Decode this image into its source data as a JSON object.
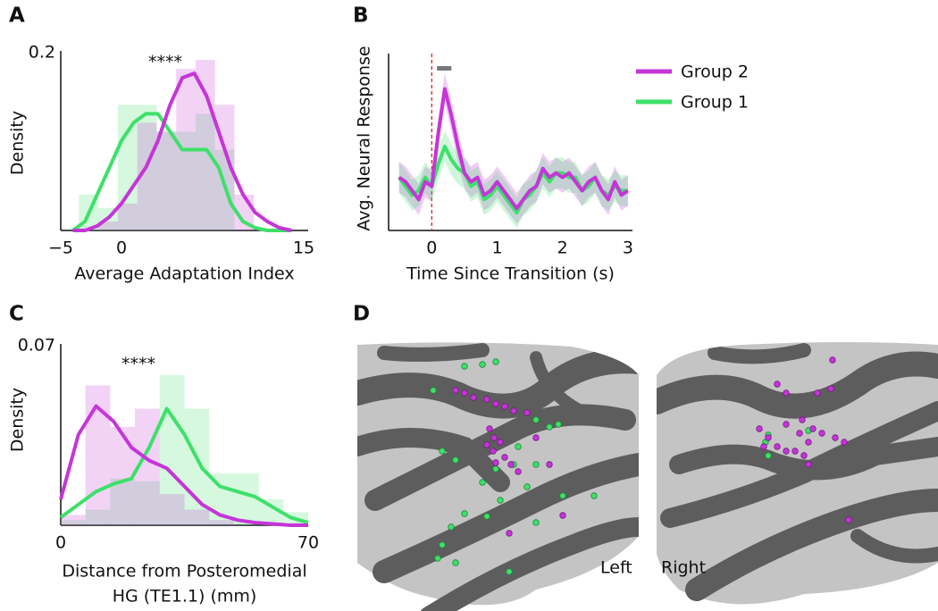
{
  "panel_labels": [
    "A",
    "B",
    "C",
    "D"
  ],
  "chart_data": [
    {
      "type": "histogram",
      "xlabel": [
        "Average Adaptation Index"
      ],
      "ylabel": "Density",
      "annotation": "****",
      "xlim": [
        -5,
        15
      ],
      "ylim": [
        0,
        0.2
      ],
      "xticks": [
        {
          "value": -5,
          "label": "−5"
        },
        0,
        15
      ],
      "yticks": [
        0.2
      ],
      "bins": [
        -3.5,
        -1.9,
        -0.3,
        1.3,
        2.9,
        4.5,
        6.1,
        7.7,
        9.3,
        10.9
      ],
      "kde_x": [
        -4,
        -3,
        -2,
        -1,
        0,
        1,
        2,
        3,
        4,
        5,
        6,
        7,
        8,
        9,
        10,
        11,
        12,
        13,
        14
      ],
      "series": [
        {
          "color": "#3ee06a",
          "values": [
            0.04,
            0.025,
            0.14,
            0.14,
            0.11,
            0.11,
            0.13,
            0.09,
            0.0
          ],
          "kde": [
            0.0,
            0.01,
            0.04,
            0.07,
            0.1,
            0.12,
            0.13,
            0.13,
            0.11,
            0.09,
            0.09,
            0.09,
            0.07,
            0.03,
            0.01,
            0.003,
            0.0,
            0.0,
            0.0
          ]
        },
        {
          "color": "#c535d8",
          "values": [
            0.0,
            0.01,
            0.03,
            0.12,
            0.11,
            0.18,
            0.19,
            0.14,
            0.04
          ],
          "kde": [
            0.0,
            0.0,
            0.005,
            0.015,
            0.03,
            0.05,
            0.07,
            0.1,
            0.14,
            0.17,
            0.175,
            0.15,
            0.11,
            0.07,
            0.04,
            0.02,
            0.01,
            0.003,
            0.0
          ]
        }
      ]
    },
    {
      "type": "line",
      "xlabel": [
        "Time Since Transition (s)"
      ],
      "ylabel": "Avg. Neural Response",
      "xlim": [
        -0.66,
        3.07
      ],
      "ylim": [
        -1,
        3
      ],
      "xticks": [
        0,
        1,
        2,
        3
      ],
      "legend": "right",
      "event_x": 0,
      "sig_window": [
        0.08,
        0.3
      ],
      "x": [
        -0.5,
        -0.4,
        -0.3,
        -0.2,
        -0.1,
        0,
        0.1,
        0.2,
        0.3,
        0.4,
        0.5,
        0.6,
        0.7,
        0.8,
        0.9,
        1.0,
        1.1,
        1.2,
        1.3,
        1.4,
        1.5,
        1.6,
        1.7,
        1.8,
        1.9,
        2.0,
        2.1,
        2.2,
        2.3,
        2.4,
        2.5,
        2.6,
        2.7,
        2.8,
        2.9,
        3.0
      ],
      "series": [
        {
          "name": "Group 2",
          "color": "#c535d8",
          "values": [
            0.2,
            0.1,
            -0.1,
            -0.3,
            0.1,
            0.0,
            1.2,
            2.2,
            1.6,
            0.9,
            0.3,
            0.1,
            0.2,
            -0.2,
            -0.1,
            0.1,
            -0.1,
            -0.3,
            -0.5,
            -0.3,
            -0.1,
            0.0,
            0.4,
            0.2,
            0.3,
            0.2,
            0.3,
            0.1,
            -0.1,
            0.1,
            0.2,
            -0.1,
            -0.3,
            0.1,
            -0.2,
            -0.1
          ],
          "error": [
            0.35,
            0.35,
            0.35,
            0.35,
            0.35,
            0.35,
            0.35,
            0.35,
            0.35,
            0.35,
            0.35,
            0.35,
            0.35,
            0.35,
            0.35,
            0.35,
            0.35,
            0.35,
            0.35,
            0.35,
            0.35,
            0.35,
            0.35,
            0.35,
            0.35,
            0.35,
            0.35,
            0.35,
            0.35,
            0.35,
            0.35,
            0.35,
            0.35,
            0.35,
            0.35,
            0.35
          ]
        },
        {
          "name": "Group 1",
          "color": "#3ee06a",
          "values": [
            0.2,
            0.0,
            -0.2,
            -0.1,
            0.2,
            0.0,
            0.5,
            0.9,
            0.6,
            0.4,
            0.3,
            0.0,
            0.1,
            -0.3,
            -0.2,
            0.0,
            -0.2,
            -0.4,
            -0.6,
            -0.3,
            -0.2,
            0.0,
            0.3,
            0.1,
            0.3,
            0.3,
            0.2,
            0.2,
            -0.1,
            0.0,
            0.2,
            -0.1,
            -0.2,
            0.0,
            -0.1,
            -0.1
          ],
          "error": [
            0.35,
            0.35,
            0.35,
            0.35,
            0.35,
            0.35,
            0.35,
            0.35,
            0.35,
            0.35,
            0.35,
            0.35,
            0.35,
            0.35,
            0.35,
            0.35,
            0.35,
            0.35,
            0.35,
            0.35,
            0.35,
            0.35,
            0.35,
            0.35,
            0.35,
            0.35,
            0.35,
            0.35,
            0.35,
            0.35,
            0.35,
            0.35,
            0.35,
            0.35,
            0.35,
            0.35
          ]
        }
      ]
    },
    {
      "type": "histogram",
      "xlabel": [
        "Distance from Posteromedial",
        "HG (TE1.1) (mm)"
      ],
      "ylabel": "Density",
      "annotation": "****",
      "xlim": [
        0,
        70
      ],
      "ylim": [
        0,
        0.07
      ],
      "xticks": [
        0,
        70
      ],
      "yticks": [
        0.07
      ],
      "bins": [
        0,
        7,
        14,
        21,
        28,
        35,
        42,
        49,
        56,
        63,
        70
      ],
      "kde_x": [
        0,
        5,
        10,
        15,
        20,
        25,
        30,
        35,
        40,
        45,
        50,
        55,
        60,
        65,
        70
      ],
      "series": [
        {
          "color": "#3ee06a",
          "values": [
            0.002,
            0.006,
            0.018,
            0.017,
            0.058,
            0.045,
            0.02,
            0.02,
            0.01,
            0.005
          ],
          "kde": [
            0.003,
            0.008,
            0.013,
            0.016,
            0.018,
            0.03,
            0.045,
            0.035,
            0.022,
            0.015,
            0.013,
            0.011,
            0.007,
            0.003,
            0.001
          ]
        },
        {
          "color": "#c535d8",
          "values": [
            0.004,
            0.054,
            0.038,
            0.045,
            0.012,
            0.006,
            0.002,
            0.0,
            0.0,
            0.0
          ],
          "kde": [
            0.01,
            0.035,
            0.046,
            0.04,
            0.03,
            0.025,
            0.022,
            0.015,
            0.008,
            0.004,
            0.002,
            0.001,
            0.0005,
            0.0,
            0.0
          ]
        }
      ]
    }
  ],
  "brain": {
    "hemispheres": [
      "Left",
      "Right"
    ]
  }
}
